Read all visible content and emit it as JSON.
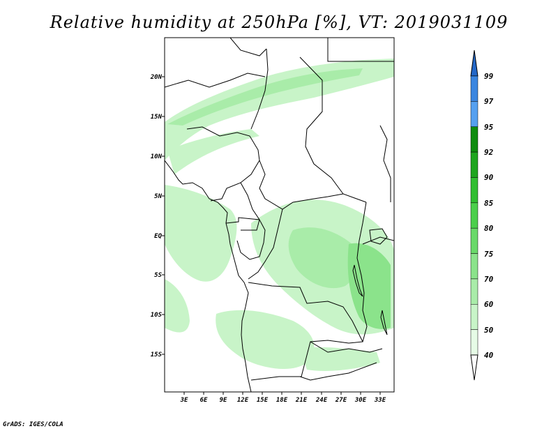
{
  "title": "Relative humidity at 250hPa [%], VT: 2019031109",
  "credit": "GrADS: IGES/COLA",
  "map": {
    "variable": "Relative humidity",
    "level": "250hPa",
    "units": "%",
    "valid_time": "2019031109",
    "lon_labels": [
      "3E",
      "6E",
      "9E",
      "12E",
      "15E",
      "18E",
      "21E",
      "24E",
      "27E",
      "30E",
      "33E"
    ],
    "lat_labels": [
      "20N",
      "15N",
      "10N",
      "5N",
      "EQ",
      "5S",
      "10S",
      "15S"
    ]
  },
  "colorbar": {
    "levels": [
      "99",
      "97",
      "95",
      "92",
      "90",
      "85",
      "80",
      "75",
      "70",
      "60",
      "50",
      "40"
    ],
    "colors": [
      "#2468c8",
      "#3a86e0",
      "#55a0f0",
      "#0f8c0f",
      "#1ea51e",
      "#32be32",
      "#4ccf4c",
      "#6ad96a",
      "#8be38b",
      "#a9eca9",
      "#c8f4c8",
      "#e6fbe6"
    ]
  }
}
